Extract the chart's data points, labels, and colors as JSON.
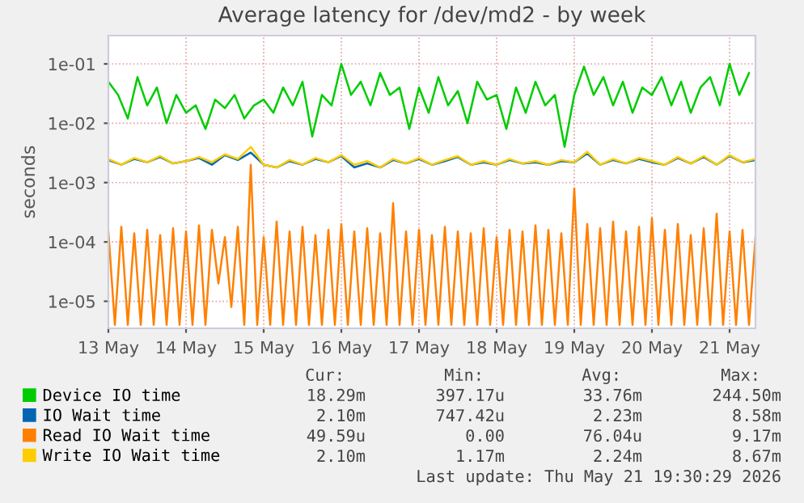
{
  "chart_data": {
    "type": "line",
    "title": "Average latency for /dev/md2 - by week",
    "ylabel": "seconds",
    "log": "y",
    "grid": true,
    "legend": "bottom",
    "xlim": [
      "2026-05-13T00:00",
      "2026-05-21T08:00"
    ],
    "xticks": [
      {
        "value": "2026-05-13",
        "label": "13 May"
      },
      {
        "value": "2026-05-14",
        "label": "14 May"
      },
      {
        "value": "2026-05-15",
        "label": "15 May"
      },
      {
        "value": "2026-05-16",
        "label": "16 May"
      },
      {
        "value": "2026-05-17",
        "label": "17 May"
      },
      {
        "value": "2026-05-18",
        "label": "18 May"
      },
      {
        "value": "2026-05-19",
        "label": "19 May"
      },
      {
        "value": "2026-05-20",
        "label": "20 May"
      },
      {
        "value": "2026-05-21",
        "label": "21 May"
      }
    ],
    "ylim": [
      3.5e-06,
      0.3
    ],
    "yticks": [
      {
        "value": 1e-05,
        "label": "1e-05"
      },
      {
        "value": 0.0001,
        "label": "1e-04"
      },
      {
        "value": 0.001,
        "label": "1e-03"
      },
      {
        "value": 0.01,
        "label": "1e-02"
      },
      {
        "value": 0.1,
        "label": "1e-01"
      }
    ],
    "series": [
      {
        "name": "Device IO time",
        "color": "#00cc00",
        "x": [
          "2026-05-13T00:00",
          "2026-05-13T03:00",
          "2026-05-13T06:00",
          "2026-05-13T09:00",
          "2026-05-13T12:00",
          "2026-05-13T15:00",
          "2026-05-13T18:00",
          "2026-05-13T21:00",
          "2026-05-14T00:00",
          "2026-05-14T03:00",
          "2026-05-14T06:00",
          "2026-05-14T09:00",
          "2026-05-14T12:00",
          "2026-05-14T15:00",
          "2026-05-14T18:00",
          "2026-05-14T21:00",
          "2026-05-15T00:00",
          "2026-05-15T03:00",
          "2026-05-15T06:00",
          "2026-05-15T09:00",
          "2026-05-15T12:00",
          "2026-05-15T15:00",
          "2026-05-15T18:00",
          "2026-05-15T21:00",
          "2026-05-16T00:00",
          "2026-05-16T03:00",
          "2026-05-16T06:00",
          "2026-05-16T09:00",
          "2026-05-16T12:00",
          "2026-05-16T15:00",
          "2026-05-16T18:00",
          "2026-05-16T21:00",
          "2026-05-17T00:00",
          "2026-05-17T03:00",
          "2026-05-17T06:00",
          "2026-05-17T09:00",
          "2026-05-17T12:00",
          "2026-05-17T15:00",
          "2026-05-17T18:00",
          "2026-05-17T21:00",
          "2026-05-18T00:00",
          "2026-05-18T03:00",
          "2026-05-18T06:00",
          "2026-05-18T09:00",
          "2026-05-18T12:00",
          "2026-05-18T15:00",
          "2026-05-18T18:00",
          "2026-05-18T21:00",
          "2026-05-19T00:00",
          "2026-05-19T03:00",
          "2026-05-19T06:00",
          "2026-05-19T09:00",
          "2026-05-19T12:00",
          "2026-05-19T15:00",
          "2026-05-19T18:00",
          "2026-05-19T21:00",
          "2026-05-20T00:00",
          "2026-05-20T03:00",
          "2026-05-20T06:00",
          "2026-05-20T09:00",
          "2026-05-20T12:00",
          "2026-05-20T15:00",
          "2026-05-20T18:00",
          "2026-05-20T21:00",
          "2026-05-21T00:00",
          "2026-05-21T03:00",
          "2026-05-21T06:00"
        ],
        "values": [
          0.05,
          0.03,
          0.012,
          0.06,
          0.02,
          0.04,
          0.01,
          0.03,
          0.015,
          0.02,
          0.008,
          0.025,
          0.018,
          0.03,
          0.012,
          0.02,
          0.025,
          0.015,
          0.04,
          0.02,
          0.05,
          0.006,
          0.03,
          0.02,
          0.1,
          0.03,
          0.05,
          0.02,
          0.07,
          0.03,
          0.04,
          0.008,
          0.04,
          0.015,
          0.06,
          0.02,
          0.035,
          0.01,
          0.05,
          0.025,
          0.03,
          0.008,
          0.04,
          0.015,
          0.05,
          0.02,
          0.03,
          0.004,
          0.03,
          0.09,
          0.03,
          0.06,
          0.02,
          0.05,
          0.015,
          0.04,
          0.03,
          0.06,
          0.02,
          0.05,
          0.015,
          0.04,
          0.06,
          0.02,
          0.1,
          0.03,
          0.07
        ]
      },
      {
        "name": "IO Wait time",
        "color": "#0066b3",
        "x": [
          "2026-05-13T00:00",
          "2026-05-13T04:00",
          "2026-05-13T08:00",
          "2026-05-13T12:00",
          "2026-05-13T16:00",
          "2026-05-13T20:00",
          "2026-05-14T00:00",
          "2026-05-14T04:00",
          "2026-05-14T08:00",
          "2026-05-14T12:00",
          "2026-05-14T16:00",
          "2026-05-14T20:00",
          "2026-05-15T00:00",
          "2026-05-15T04:00",
          "2026-05-15T08:00",
          "2026-05-15T12:00",
          "2026-05-15T16:00",
          "2026-05-15T20:00",
          "2026-05-16T00:00",
          "2026-05-16T04:00",
          "2026-05-16T08:00",
          "2026-05-16T12:00",
          "2026-05-16T16:00",
          "2026-05-16T20:00",
          "2026-05-17T00:00",
          "2026-05-17T04:00",
          "2026-05-17T08:00",
          "2026-05-17T12:00",
          "2026-05-17T16:00",
          "2026-05-17T20:00",
          "2026-05-18T00:00",
          "2026-05-18T04:00",
          "2026-05-18T08:00",
          "2026-05-18T12:00",
          "2026-05-18T16:00",
          "2026-05-18T20:00",
          "2026-05-19T00:00",
          "2026-05-19T04:00",
          "2026-05-19T08:00",
          "2026-05-19T12:00",
          "2026-05-19T16:00",
          "2026-05-19T20:00",
          "2026-05-20T00:00",
          "2026-05-20T04:00",
          "2026-05-20T08:00",
          "2026-05-20T12:00",
          "2026-05-20T16:00",
          "2026-05-20T20:00",
          "2026-05-21T00:00",
          "2026-05-21T04:00",
          "2026-05-21T08:00"
        ],
        "values": [
          0.0024,
          0.002,
          0.0025,
          0.0022,
          0.0027,
          0.0021,
          0.0023,
          0.0026,
          0.002,
          0.0029,
          0.0024,
          0.0032,
          0.002,
          0.0018,
          0.0023,
          0.002,
          0.0025,
          0.0022,
          0.0028,
          0.0018,
          0.0021,
          0.0018,
          0.0024,
          0.0021,
          0.0025,
          0.002,
          0.0023,
          0.0027,
          0.002,
          0.0022,
          0.002,
          0.0024,
          0.0021,
          0.0022,
          0.002,
          0.0023,
          0.0022,
          0.0031,
          0.002,
          0.0024,
          0.0021,
          0.0025,
          0.0022,
          0.002,
          0.0026,
          0.0021,
          0.0027,
          0.002,
          0.0028,
          0.0022,
          0.0024
        ]
      },
      {
        "name": "Read IO Wait time",
        "color": "#ff8000",
        "x": [
          "2026-05-13T00:00",
          "2026-05-13T02:00",
          "2026-05-13T04:00",
          "2026-05-13T06:00",
          "2026-05-13T08:00",
          "2026-05-13T10:00",
          "2026-05-13T12:00",
          "2026-05-13T14:00",
          "2026-05-13T16:00",
          "2026-05-13T18:00",
          "2026-05-13T20:00",
          "2026-05-13T22:00",
          "2026-05-14T00:00",
          "2026-05-14T02:00",
          "2026-05-14T04:00",
          "2026-05-14T06:00",
          "2026-05-14T08:00",
          "2026-05-14T10:00",
          "2026-05-14T12:00",
          "2026-05-14T14:00",
          "2026-05-14T16:00",
          "2026-05-14T18:00",
          "2026-05-14T20:00",
          "2026-05-14T22:00",
          "2026-05-15T00:00",
          "2026-05-15T02:00",
          "2026-05-15T04:00",
          "2026-05-15T06:00",
          "2026-05-15T08:00",
          "2026-05-15T10:00",
          "2026-05-15T12:00",
          "2026-05-15T14:00",
          "2026-05-15T16:00",
          "2026-05-15T18:00",
          "2026-05-15T20:00",
          "2026-05-15T22:00",
          "2026-05-16T00:00",
          "2026-05-16T02:00",
          "2026-05-16T04:00",
          "2026-05-16T06:00",
          "2026-05-16T08:00",
          "2026-05-16T10:00",
          "2026-05-16T12:00",
          "2026-05-16T14:00",
          "2026-05-16T16:00",
          "2026-05-16T18:00",
          "2026-05-16T20:00",
          "2026-05-16T22:00",
          "2026-05-17T00:00",
          "2026-05-17T02:00",
          "2026-05-17T04:00",
          "2026-05-17T06:00",
          "2026-05-17T08:00",
          "2026-05-17T10:00",
          "2026-05-17T12:00",
          "2026-05-17T14:00",
          "2026-05-17T16:00",
          "2026-05-17T18:00",
          "2026-05-17T20:00",
          "2026-05-17T22:00",
          "2026-05-18T00:00",
          "2026-05-18T02:00",
          "2026-05-18T04:00",
          "2026-05-18T06:00",
          "2026-05-18T08:00",
          "2026-05-18T10:00",
          "2026-05-18T12:00",
          "2026-05-18T14:00",
          "2026-05-18T16:00",
          "2026-05-18T18:00",
          "2026-05-18T20:00",
          "2026-05-18T22:00",
          "2026-05-19T00:00",
          "2026-05-19T02:00",
          "2026-05-19T04:00",
          "2026-05-19T06:00",
          "2026-05-19T08:00",
          "2026-05-19T10:00",
          "2026-05-19T12:00",
          "2026-05-19T14:00",
          "2026-05-19T16:00",
          "2026-05-19T18:00",
          "2026-05-19T20:00",
          "2026-05-19T22:00",
          "2026-05-20T00:00",
          "2026-05-20T02:00",
          "2026-05-20T04:00",
          "2026-05-20T06:00",
          "2026-05-20T08:00",
          "2026-05-20T10:00",
          "2026-05-20T12:00",
          "2026-05-20T14:00",
          "2026-05-20T16:00",
          "2026-05-20T18:00",
          "2026-05-20T20:00",
          "2026-05-20T22:00",
          "2026-05-21T00:00",
          "2026-05-21T02:00",
          "2026-05-21T04:00",
          "2026-05-21T06:00",
          "2026-05-21T08:00"
        ],
        "values": [
          0.00015,
          4e-06,
          0.00018,
          4e-06,
          0.00014,
          4e-06,
          0.00016,
          4e-06,
          0.00013,
          4e-06,
          0.00017,
          4e-06,
          0.00015,
          4e-06,
          0.00019,
          4e-06,
          0.00016,
          2e-05,
          0.00012,
          8e-06,
          0.00018,
          4e-06,
          0.002,
          4e-06,
          0.00012,
          4e-06,
          0.00022,
          4e-06,
          0.00015,
          4e-06,
          0.00018,
          4e-06,
          0.00013,
          4e-06,
          0.00016,
          4e-06,
          0.0002,
          4e-06,
          0.00015,
          4e-06,
          0.00017,
          4e-06,
          0.00014,
          4e-06,
          0.00045,
          4e-06,
          0.00015,
          4e-06,
          0.00016,
          4e-06,
          0.00013,
          4e-06,
          0.00018,
          4e-06,
          0.00015,
          4e-06,
          0.00014,
          4e-06,
          0.00017,
          4e-06,
          0.00012,
          4e-06,
          0.00016,
          4e-06,
          0.00015,
          4e-06,
          0.00019,
          4e-06,
          0.00016,
          4e-06,
          0.00014,
          4e-06,
          0.0008,
          4e-06,
          0.0002,
          4e-06,
          0.00017,
          4e-06,
          0.00022,
          4e-06,
          0.00015,
          4e-06,
          0.00018,
          4e-06,
          0.00025,
          4e-06,
          0.00016,
          4e-06,
          0.0002,
          4e-06,
          0.00013,
          4e-06,
          0.00017,
          4e-06,
          0.0003,
          4e-06,
          0.00015,
          4e-06,
          0.00016,
          4e-06,
          0.00012
        ]
      },
      {
        "name": "Write IO Wait time",
        "color": "#ffcc00",
        "x": [
          "2026-05-13T00:00",
          "2026-05-13T04:00",
          "2026-05-13T08:00",
          "2026-05-13T12:00",
          "2026-05-13T16:00",
          "2026-05-13T20:00",
          "2026-05-14T00:00",
          "2026-05-14T04:00",
          "2026-05-14T08:00",
          "2026-05-14T12:00",
          "2026-05-14T16:00",
          "2026-05-14T20:00",
          "2026-05-15T00:00",
          "2026-05-15T04:00",
          "2026-05-15T08:00",
          "2026-05-15T12:00",
          "2026-05-15T16:00",
          "2026-05-15T20:00",
          "2026-05-16T00:00",
          "2026-05-16T04:00",
          "2026-05-16T08:00",
          "2026-05-16T12:00",
          "2026-05-16T16:00",
          "2026-05-16T20:00",
          "2026-05-17T00:00",
          "2026-05-17T04:00",
          "2026-05-17T08:00",
          "2026-05-17T12:00",
          "2026-05-17T16:00",
          "2026-05-17T20:00",
          "2026-05-18T00:00",
          "2026-05-18T04:00",
          "2026-05-18T08:00",
          "2026-05-18T12:00",
          "2026-05-18T16:00",
          "2026-05-18T20:00",
          "2026-05-19T00:00",
          "2026-05-19T04:00",
          "2026-05-19T08:00",
          "2026-05-19T12:00",
          "2026-05-19T16:00",
          "2026-05-19T20:00",
          "2026-05-20T00:00",
          "2026-05-20T04:00",
          "2026-05-20T08:00",
          "2026-05-20T12:00",
          "2026-05-20T16:00",
          "2026-05-20T20:00",
          "2026-05-21T00:00",
          "2026-05-21T04:00",
          "2026-05-21T08:00"
        ],
        "values": [
          0.0025,
          0.002,
          0.0026,
          0.0022,
          0.0028,
          0.0021,
          0.0023,
          0.0027,
          0.0022,
          0.003,
          0.0025,
          0.004,
          0.002,
          0.0018,
          0.0024,
          0.002,
          0.0026,
          0.0022,
          0.0029,
          0.002,
          0.0023,
          0.0018,
          0.0025,
          0.0021,
          0.0026,
          0.002,
          0.0024,
          0.0028,
          0.002,
          0.0023,
          0.002,
          0.0025,
          0.0021,
          0.0023,
          0.002,
          0.0024,
          0.0022,
          0.0033,
          0.002,
          0.0025,
          0.0021,
          0.0026,
          0.0023,
          0.002,
          0.0027,
          0.0021,
          0.0028,
          0.002,
          0.0029,
          0.0022,
          0.0025
        ]
      }
    ],
    "annotations": [
      "Cur:",
      "Min:",
      "Avg:",
      "Max:",
      "18.29m",
      "397.17u",
      "33.76m",
      "244.50m",
      "2.10m",
      "747.42u",
      "2.23m",
      "8.58m",
      "49.59u",
      "0.00",
      "76.04u",
      "9.17m",
      "2.10m",
      "1.17m",
      "2.24m",
      "8.67m",
      "Last update: Thu May 21 19:30:29 2026"
    ]
  }
}
